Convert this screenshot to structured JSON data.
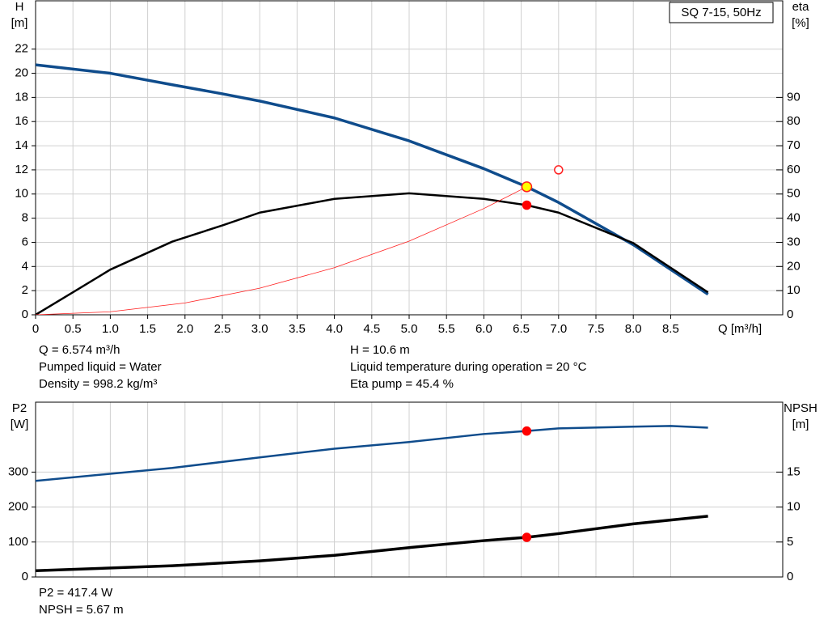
{
  "chart_data": [
    {
      "type": "line",
      "box_label": "SQ 7-15, 50Hz",
      "ylabel": [
        "H",
        "[m]"
      ],
      "y2label": [
        "eta",
        "[%]"
      ],
      "xlabel": "Q [m³/h]",
      "xlim": [
        0,
        10
      ],
      "ylim": [
        0,
        26
      ],
      "y2lim": [
        0,
        130
      ],
      "xticks": [
        0,
        0.5,
        {
          "value": 1,
          "label": "1.0"
        },
        1.5,
        {
          "value": 2,
          "label": "2.0"
        },
        2.5,
        {
          "value": 3,
          "label": "3.0"
        },
        3.5,
        {
          "value": 4,
          "label": "4.0"
        },
        4.5,
        {
          "value": 5,
          "label": "5.0"
        },
        5.5,
        {
          "value": 6,
          "label": "6.0"
        },
        6.5,
        {
          "value": 7,
          "label": "7.0"
        },
        7.5,
        {
          "value": 8,
          "label": "8.0"
        },
        8.5
      ],
      "yticks": [
        0,
        2,
        4,
        6,
        8,
        10,
        12,
        14,
        16,
        18,
        20,
        22
      ],
      "y2ticks": [
        0,
        10,
        20,
        30,
        40,
        50,
        60,
        70,
        80,
        90
      ],
      "grid": true,
      "series": [
        {
          "color": "#0f4c8c",
          "width": 3.5,
          "x": [
            0,
            1,
            1.83,
            2.5,
            3,
            4,
            5,
            6,
            6.574,
            7,
            8,
            9
          ],
          "values": [
            20.7,
            20.0,
            19.05,
            18.3,
            17.7,
            16.3,
            14.4,
            12.1,
            10.6,
            9.3,
            5.8,
            1.7
          ]
        },
        {
          "color": "#000000",
          "width": 2.5,
          "axis": "y2",
          "x": [
            0,
            0.5,
            1,
            1.83,
            2.5,
            3,
            4,
            5,
            6,
            6.574,
            7,
            8,
            9
          ],
          "values": [
            0,
            9.3,
            18.7,
            30.3,
            37,
            42.3,
            48,
            50.3,
            48,
            45.4,
            42.3,
            29.7,
            9.3
          ]
        },
        {
          "color": "#ff2020",
          "width": 0.8,
          "x": [
            0,
            1,
            2,
            3,
            4,
            5,
            6,
            6.574
          ],
          "values": [
            0,
            0.25,
            0.98,
            2.2,
            3.9,
            6.1,
            8.8,
            10.6
          ]
        }
      ],
      "points": [
        {
          "x": 7,
          "y": 12,
          "fill": "#ffffff",
          "stroke": "#ff2020",
          "r": 5
        },
        {
          "x": 6.574,
          "y": 45.4,
          "axis": "y2",
          "fill": "#ff0000",
          "stroke": "#ff0000",
          "r": 5
        },
        {
          "x": 6.574,
          "y": 10.6,
          "fill": "#ffff00",
          "stroke": "#ff2020",
          "r": 6
        }
      ],
      "notes": [
        "Q = 6.574 m³/h",
        "Pumped liquid = Water",
        "Density = 998.2 kg/m³",
        "H = 10.6 m",
        "Liquid temperature during operation = 20 °C",
        "Eta pump = 45.4 %"
      ]
    },
    {
      "type": "line",
      "ylabel": [
        "P2",
        "[W]"
      ],
      "y2label": [
        "NPSH",
        "[m]"
      ],
      "xlim": [
        0,
        10
      ],
      "ylim": [
        0,
        500
      ],
      "y2lim": [
        0,
        25
      ],
      "xticks": [
        0,
        0.5,
        1,
        1.5,
        2,
        2.5,
        3,
        3.5,
        4,
        4.5,
        5,
        5.5,
        6,
        6.5,
        7,
        7.5,
        8,
        8.5
      ],
      "xtick_labels": false,
      "yticks": [
        0,
        100,
        200,
        300
      ],
      "y2ticks": [
        0,
        5,
        10,
        15
      ],
      "grid": true,
      "series": [
        {
          "color": "#0f4c8c",
          "width": 2.5,
          "x": [
            0,
            1.83,
            3,
            4,
            5,
            6,
            6.574,
            7,
            8,
            8.5,
            9
          ],
          "values": [
            275,
            312,
            342,
            367,
            386,
            409,
            417.4,
            425,
            430,
            432,
            427
          ]
        },
        {
          "color": "#000000",
          "width": 3.5,
          "axis": "y2",
          "x": [
            0,
            1.83,
            3,
            4,
            5,
            6,
            6.574,
            7,
            8,
            9
          ],
          "values": [
            0.9,
            1.6,
            2.3,
            3.1,
            4.2,
            5.2,
            5.67,
            6.2,
            7.6,
            8.7
          ]
        }
      ],
      "points": [
        {
          "x": 6.574,
          "y": 417.4,
          "fill": "#ff0000",
          "stroke": "#ff0000",
          "r": 5
        },
        {
          "x": 6.574,
          "y": 5.67,
          "axis": "y2",
          "fill": "#ff0000",
          "stroke": "#ff0000",
          "r": 5
        }
      ],
      "notes": [
        "P2 = 417.4 W",
        "NPSH = 5.67 m"
      ]
    }
  ]
}
